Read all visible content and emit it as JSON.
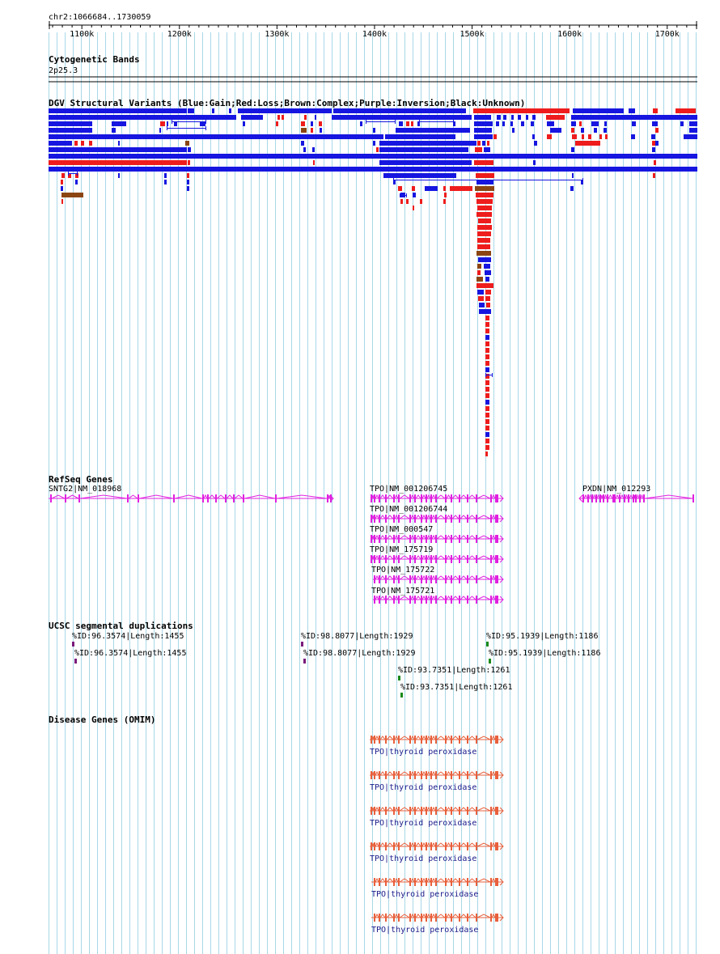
{
  "locus": "chr2:1066684..1730059",
  "colors": {
    "gain": "#1616e0",
    "loss": "#ee1c1c",
    "complex": "#8b4513",
    "refseq": "#e020e0",
    "segdup_purple": "#7a1a7a",
    "segdup_green": "#1a8a1a",
    "omim": "#e8603c",
    "omim_label": "#1a1a8a",
    "grid": "#a8d8e8"
  },
  "ruler": {
    "start": 1066684,
    "end": 1730059,
    "ticks": [
      1100000,
      1200000,
      1300000,
      1400000,
      1500000,
      1600000,
      1700000
    ],
    "tick_labels": [
      "1100k",
      "1200k",
      "1300k",
      "1400k",
      "1500k",
      "1600k",
      "1700k"
    ]
  },
  "cytoband": {
    "title": "Cytogenetic Bands",
    "band": "2p25.3"
  },
  "dgv": {
    "title": "DGV Structural Variants (Blue:Gain;Red:Loss;Brown:Complex;Purple:Inversion;Black:Unknown)"
  },
  "refseq": {
    "title": "RefSeq Genes",
    "genes": [
      {
        "label": "SNTG2|NM_018968",
        "start": 1066684,
        "end": 1356000,
        "strand": "+"
      },
      {
        "label": "TPO|NM_001206745",
        "start": 1397000,
        "end": 1530000,
        "strand": "+"
      },
      {
        "label": "TPO|NM_001206744",
        "start": 1397000,
        "end": 1530000,
        "strand": "+"
      },
      {
        "label": "TPO|NM_000547",
        "start": 1397000,
        "end": 1530000,
        "strand": "+"
      },
      {
        "label": "TPO|NM_175719",
        "start": 1397000,
        "end": 1530000,
        "strand": "+"
      },
      {
        "label": "TPO|NM_175722",
        "start": 1398500,
        "end": 1530000,
        "strand": "+"
      },
      {
        "label": "TPO|NM_175721",
        "start": 1398500,
        "end": 1530000,
        "strand": "+"
      },
      {
        "label": "PXDN|NM_012293",
        "start": 1610000,
        "end": 1730059,
        "strand": "-"
      }
    ]
  },
  "segdup": {
    "title": "UCSC segmental duplications",
    "items": [
      {
        "label": "%ID:96.3574|Length:1455",
        "pos": 1092000,
        "color": "purple"
      },
      {
        "label": "%ID:96.3574|Length:1455",
        "pos": 1093500,
        "color": "purple"
      },
      {
        "label": "%ID:98.8077|Length:1929",
        "pos": 1325000,
        "color": "purple"
      },
      {
        "label": "%ID:98.8077|Length:1929",
        "pos": 1326500,
        "color": "purple"
      },
      {
        "label": "%ID:93.7351|Length:1261",
        "pos": 1428000,
        "color": "green"
      },
      {
        "label": "%ID:93.7351|Length:1261",
        "pos": 1429500,
        "color": "green"
      },
      {
        "label": "%ID:95.1939|Length:1186",
        "pos": 1511000,
        "color": "green"
      },
      {
        "label": "%ID:95.1939|Length:1186",
        "pos": 1513000,
        "color": "green"
      }
    ]
  },
  "omim": {
    "title": "Disease Genes (OMIM)",
    "genes": [
      {
        "label": "TPO|thyroid peroxidase",
        "start": 1397000,
        "end": 1530000
      },
      {
        "label": "TPO|thyroid peroxidase",
        "start": 1397000,
        "end": 1530000
      },
      {
        "label": "TPO|thyroid peroxidase",
        "start": 1397000,
        "end": 1530000
      },
      {
        "label": "TPO|thyroid peroxidase",
        "start": 1397000,
        "end": 1530000
      },
      {
        "label": "TPO|thyroid peroxidase",
        "start": 1398500,
        "end": 1530000
      },
      {
        "label": "TPO|thyroid peroxidase",
        "start": 1398500,
        "end": 1530000
      }
    ]
  }
}
